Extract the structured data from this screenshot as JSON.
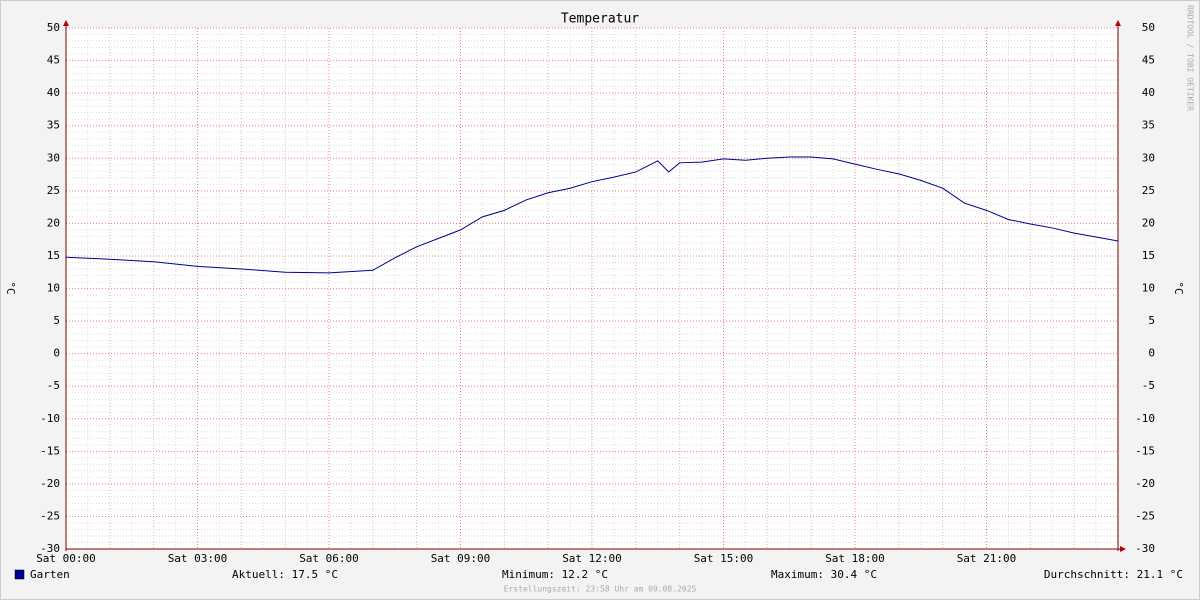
{
  "chart_data": {
    "type": "line",
    "title": "Temperatur",
    "ylabel": "°C",
    "watermark": "RRDTOOL / TOBI OETIKER",
    "x": [
      0,
      1,
      2,
      3,
      4,
      5,
      6,
      7,
      7.5,
      8,
      8.5,
      9,
      9.5,
      10,
      10.5,
      11,
      11.5,
      12,
      12.5,
      13,
      13.5,
      13.75,
      14,
      14.5,
      15,
      15.5,
      16,
      16.5,
      17,
      17.5,
      18,
      18.5,
      19,
      19.5,
      20,
      20.5,
      21,
      21.5,
      22,
      22.5,
      23,
      23.5,
      24
    ],
    "series": [
      {
        "name": "Garten",
        "color": "#000090",
        "values": [
          14.8,
          14.5,
          14.1,
          13.4,
          13.0,
          12.5,
          12.4,
          12.8,
          14.7,
          16.4,
          17.7,
          19.0,
          21.0,
          22.0,
          23.6,
          24.7,
          25.4,
          26.4,
          27.1,
          27.9,
          29.6,
          27.9,
          29.3,
          29.4,
          29.9,
          29.7,
          30.0,
          30.2,
          30.2,
          29.9,
          29.1,
          28.3,
          27.6,
          26.6,
          25.4,
          23.1,
          22.0,
          20.6,
          19.9,
          19.3,
          18.5,
          17.9,
          17.3
        ]
      }
    ],
    "xlim": [
      0,
      24
    ],
    "xticks": [
      {
        "value": 0,
        "label": "Sat 00:00"
      },
      {
        "value": 3,
        "label": "Sat 03:00"
      },
      {
        "value": 6,
        "label": "Sat 06:00"
      },
      {
        "value": 9,
        "label": "Sat 09:00"
      },
      {
        "value": 12,
        "label": "Sat 12:00"
      },
      {
        "value": 15,
        "label": "Sat 15:00"
      },
      {
        "value": 18,
        "label": "Sat 18:00"
      },
      {
        "value": 21,
        "label": "Sat 21:00"
      }
    ],
    "ylim": [
      -30,
      50
    ],
    "yticks": [
      -30,
      -25,
      -20,
      -15,
      -10,
      -5,
      0,
      5,
      10,
      15,
      20,
      25,
      30,
      35,
      40,
      45,
      50
    ],
    "grid": true,
    "right_axis": true,
    "legend_stats": [
      "Aktuell: 17.5 °C",
      "Minimum: 12.2 °C",
      "Maximum: 30.4 °C",
      "Durchschnitt: 21.1 °C"
    ],
    "footer": "Erstellungszeit: 23:58 Uhr am 09.08.2025"
  }
}
